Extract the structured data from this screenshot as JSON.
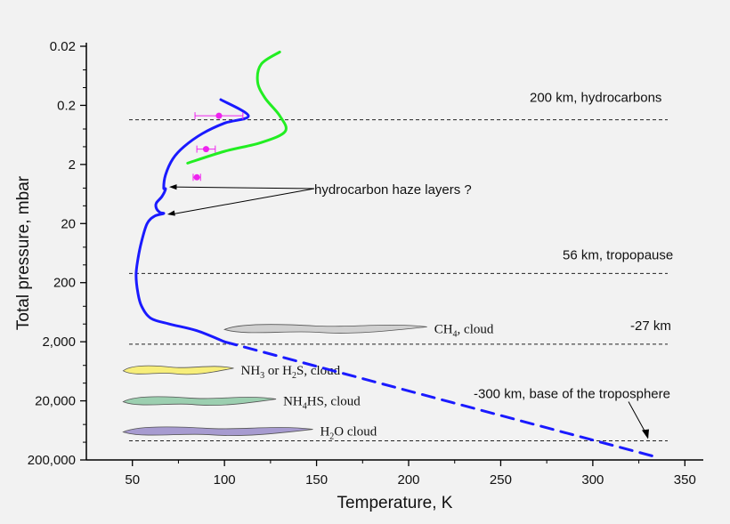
{
  "chart_data": {
    "type": "line",
    "xlabel": "Temperature, K",
    "ylabel": "Total pressure, mbar",
    "xlim": [
      25,
      360
    ],
    "x_ticks": [
      "50",
      "100",
      "150",
      "200",
      "250",
      "300",
      "350"
    ],
    "y_scale": "log",
    "y_ticks": [
      "0.02",
      "0.2",
      "2",
      "20",
      "200",
      "2,000",
      "20,000",
      "200,000"
    ],
    "grid": false,
    "series": [
      {
        "color": "#1a1aff",
        "style": "solid",
        "points": [
          [
            98,
            0.16
          ],
          [
            113,
            0.3
          ],
          [
            100,
            0.4
          ],
          [
            88,
            0.6
          ],
          [
            78,
            1.0
          ],
          [
            72,
            1.6
          ],
          [
            68,
            3
          ],
          [
            67,
            5
          ],
          [
            68,
            5.2
          ],
          [
            66,
            7
          ],
          [
            63,
            9
          ],
          [
            63,
            11
          ],
          [
            65,
            13
          ],
          [
            67,
            13.5
          ],
          [
            62,
            15
          ],
          [
            58,
            20
          ],
          [
            55,
            40
          ],
          [
            53,
            80
          ],
          [
            52,
            150
          ],
          [
            53,
            300
          ],
          [
            55,
            500
          ],
          [
            60,
            800
          ],
          [
            70,
            1000
          ],
          [
            85,
            1300
          ],
          [
            100,
            2000
          ]
        ]
      },
      {
        "color": "#1a1aff",
        "style": "dashed",
        "points": [
          [
            100,
            2000
          ],
          [
            335,
            180000
          ]
        ]
      },
      {
        "color": "#22ee22",
        "style": "solid",
        "points": [
          [
            80,
            1.9
          ],
          [
            100,
            1.2
          ],
          [
            120,
            0.85
          ],
          [
            133,
            0.55
          ],
          [
            130,
            0.3
          ],
          [
            122,
            0.15
          ],
          [
            118,
            0.08
          ],
          [
            120,
            0.04
          ],
          [
            130,
            0.025
          ]
        ]
      },
      {
        "color": "#ee22ee",
        "style": "markers-with-xerror",
        "points": [
          {
            "x": 97,
            "y": 0.3,
            "xerr": 13
          },
          {
            "x": 90,
            "y": 1.1,
            "xerr": 5
          },
          {
            "x": 85,
            "y": 3.3,
            "xerr": 2
          }
        ]
      }
    ],
    "reference_lines": [
      {
        "y": 0.35,
        "label": "200 km, hydrocarbons"
      },
      {
        "y": 140,
        "label": "56 km, tropopause"
      },
      {
        "y": 2200,
        "label": "-27 km"
      },
      {
        "y": 95000,
        "label": "-300 km, base of the troposphere"
      }
    ],
    "annotations": {
      "haze_label": "hydrocarbon haze layers ?",
      "haze_arrow_targets": [
        [
          69,
          4.8
        ],
        [
          68,
          14
        ]
      ]
    },
    "clouds": [
      {
        "name_main": "CH",
        "name_sub": "4",
        "name_rest": ", cloud",
        "color": "#d0d0d0",
        "x1": 100,
        "x2": 210,
        "y": 1200
      },
      {
        "name_main": "NH",
        "name_sub": "3",
        "name_rest": " or H",
        "name_sub2": "2",
        "name_rest2": "S, cloud",
        "color": "#f7ee7a",
        "x1": 45,
        "x2": 105,
        "y": 6000
      },
      {
        "name_main": "NH",
        "name_sub": "4",
        "name_rest": "HS, cloud",
        "color": "#9ccfb0",
        "x1": 45,
        "x2": 128,
        "y": 20000
      },
      {
        "name_main": "H",
        "name_sub": "2",
        "name_rest": "O cloud",
        "color": "#a79bd0",
        "x1": 45,
        "x2": 148,
        "y": 65000
      }
    ]
  }
}
